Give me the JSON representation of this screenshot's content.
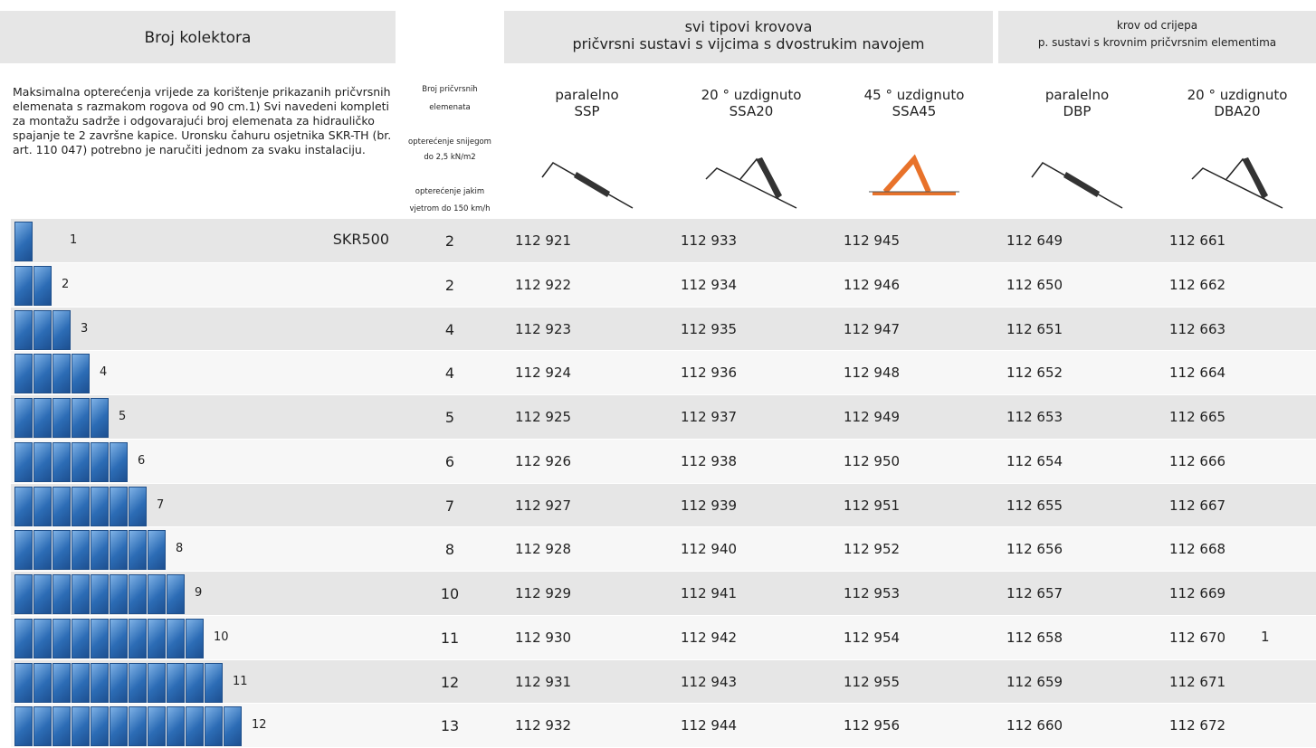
{
  "header": {
    "collectors": "Broj kolektora",
    "group1": [
      "svi tipovi krovova",
      "pričvrsni sustavi s vijcima s dvostrukim navojem"
    ],
    "group2": [
      "krov od crijepa",
      "p. sustavi s krovnim pričvrsnim elementima"
    ]
  },
  "description": "Maksimalna opterećenja vrijede za korištenje prikazanih pričvrsnih elemenata s razmakom rogova od 90 cm.1)  Svi navedeni kompleti za montažu sadrže i odgovarajući broj elemenata za hidrauličko spajanje te 2 završne kapice. Uronsku čahuru osjetnika SKR-TH (br. art. 110 047) potrebno je naručiti jednom za svaku instalaciju.",
  "fastener_header": [
    "Broj  pričvrsnih",
    "elemenata",
    "opterećenje snijegom",
    "do   2,5 kN/m2",
    "opterećenje jakim",
    "vjetrom do 150 km/h"
  ],
  "columns": [
    {
      "angle": "paralelno",
      "code": "SSP"
    },
    {
      "angle": "20 ° uzdignuto",
      "code": "SSA20"
    },
    {
      "angle": "45 ° uzdignuto",
      "code": "SSA45"
    },
    {
      "angle": "paralelno",
      "code": "DBP"
    },
    {
      "angle": "20 ° uzdignuto",
      "code": "DBA20"
    }
  ],
  "rows": [
    {
      "collectors": 1,
      "model": "SKR500",
      "fasteners": 2,
      "codes": [
        "112 921",
        "112 933",
        "112 945",
        "112 649",
        "112 661"
      ]
    },
    {
      "collectors": 2,
      "fasteners": 2,
      "codes": [
        "112 922",
        "112 934",
        "112 946",
        "112 650",
        "112 662"
      ]
    },
    {
      "collectors": 3,
      "fasteners": 4,
      "codes": [
        "112 923",
        "112 935",
        "112 947",
        "112 651",
        "112 663"
      ]
    },
    {
      "collectors": 4,
      "fasteners": 4,
      "codes": [
        "112 924",
        "112 936",
        "112 948",
        "112 652",
        "112 664"
      ]
    },
    {
      "collectors": 5,
      "fasteners": 5,
      "codes": [
        "112 925",
        "112 937",
        "112 949",
        "112 653",
        "112 665"
      ]
    },
    {
      "collectors": 6,
      "fasteners": 6,
      "codes": [
        "112 926",
        "112 938",
        "112 950",
        "112 654",
        "112 666"
      ]
    },
    {
      "collectors": 7,
      "fasteners": 7,
      "codes": [
        "112 927",
        "112 939",
        "112 951",
        "112 655",
        "112 667"
      ]
    },
    {
      "collectors": 8,
      "fasteners": 8,
      "codes": [
        "112 928",
        "112 940",
        "112 952",
        "112 656",
        "112 668"
      ]
    },
    {
      "collectors": 9,
      "fasteners": 10,
      "codes": [
        "112 929",
        "112 941",
        "112 953",
        "112 657",
        "112 669"
      ]
    },
    {
      "collectors": 10,
      "fasteners": 11,
      "codes": [
        "112 930",
        "112 942",
        "112 954",
        "112 658",
        "112 670"
      ],
      "note": "1"
    },
    {
      "collectors": 11,
      "fasteners": 12,
      "codes": [
        "112 931",
        "112 943",
        "112 955",
        "112 659",
        "112 671"
      ]
    },
    {
      "collectors": 12,
      "fasteners": 13,
      "codes": [
        "112 932",
        "112 944",
        "112 956",
        "112 660",
        "112 672"
      ]
    }
  ]
}
